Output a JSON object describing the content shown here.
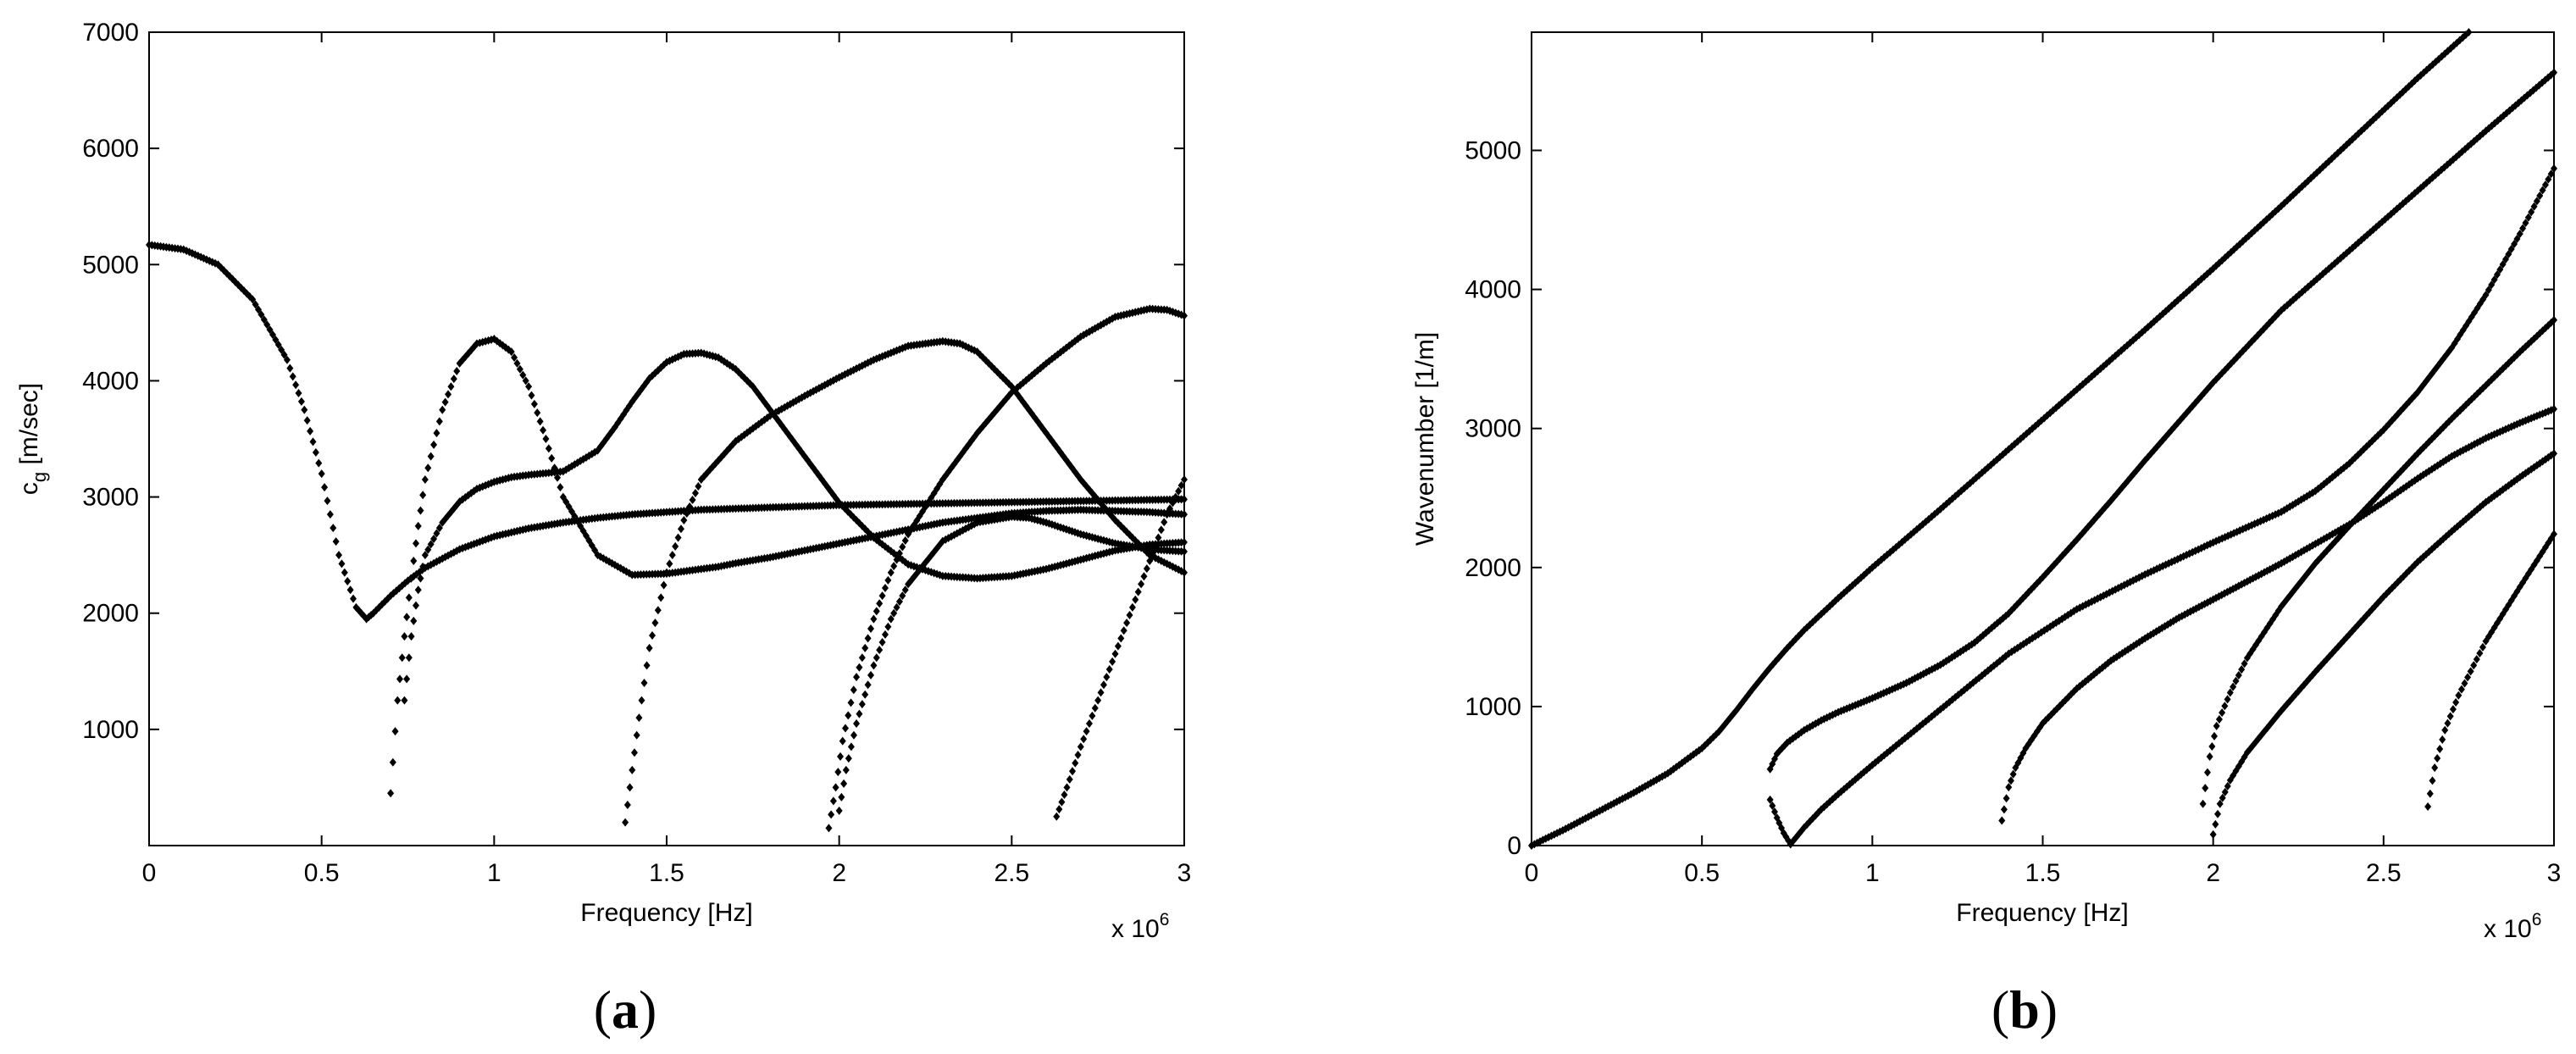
{
  "chart_data": [
    {
      "type": "scatter",
      "panel_label": "a",
      "xlabel": "Frequency [Hz]",
      "ylabel_main": "c",
      "ylabel_sub": "g",
      "ylabel_rest": " [m/sec]",
      "x_multiplier_base": "x 10",
      "x_multiplier_exp": "6",
      "xlim": [
        0,
        3
      ],
      "ylim": [
        0,
        7000
      ],
      "xticks": [
        0,
        0.5,
        1,
        1.5,
        2,
        2.5,
        3
      ],
      "xtick_labels": [
        "0",
        "0.5",
        "1",
        "1.5",
        "2",
        "2.5",
        "3"
      ],
      "yticks": [
        1000,
        2000,
        3000,
        4000,
        5000,
        6000,
        7000
      ],
      "ytick_labels": [
        "1000",
        "2000",
        "3000",
        "4000",
        "5000",
        "6000",
        "7000"
      ],
      "grid": false,
      "series": [
        {
          "x": [
            0,
            0.1,
            0.2,
            0.3,
            0.4,
            0.45,
            0.5,
            0.55,
            0.6,
            0.63,
            0.65,
            0.7,
            0.75,
            0.8,
            0.9,
            1.0,
            1.1,
            1.2,
            1.3,
            1.4,
            1.5,
            1.6,
            1.7,
            1.8,
            1.9,
            2.0,
            2.1,
            2.2,
            2.3,
            2.4,
            2.5,
            2.6,
            2.7,
            2.8,
            2.9,
            3.0
          ],
          "y": [
            5170,
            5130,
            5000,
            4700,
            4180,
            3750,
            3200,
            2500,
            2050,
            1950,
            2000,
            2150,
            2280,
            2390,
            2550,
            2660,
            2730,
            2780,
            2820,
            2850,
            2870,
            2890,
            2900,
            2910,
            2920,
            2930,
            2935,
            2940,
            2945,
            2950,
            2955,
            2960,
            2965,
            2970,
            2975,
            2980
          ]
        },
        {
          "x": [
            0.7,
            0.72,
            0.74,
            0.76,
            0.78,
            0.8,
            0.85,
            0.9,
            0.95,
            1.0,
            1.05,
            1.1,
            1.15,
            1.2,
            1.3,
            1.4,
            1.5,
            1.6,
            1.65,
            1.7,
            1.8,
            1.9,
            2.0,
            2.1,
            2.2,
            2.3,
            2.4,
            2.5,
            2.6,
            2.7,
            2.8,
            2.9,
            3.0
          ],
          "y": [
            450,
            1250,
            1800,
            2300,
            2750,
            3150,
            3750,
            4150,
            4320,
            4360,
            4250,
            3950,
            3500,
            3000,
            2500,
            2330,
            2340,
            2380,
            2400,
            2430,
            2480,
            2540,
            2600,
            2660,
            2720,
            2780,
            2820,
            2860,
            2880,
            2890,
            2880,
            2870,
            2850
          ]
        },
        {
          "x": [
            0.74,
            0.76,
            0.78,
            0.8,
            0.85,
            0.9,
            0.95,
            1.0,
            1.05,
            1.1,
            1.2,
            1.3,
            1.35,
            1.4,
            1.45,
            1.5,
            1.55,
            1.6,
            1.65,
            1.7,
            1.75,
            1.8,
            1.9,
            2.0,
            2.1,
            2.2,
            2.3,
            2.4,
            2.5,
            2.6,
            2.7,
            2.8,
            2.9,
            3.0
          ],
          "y": [
            1250,
            1800,
            2200,
            2500,
            2780,
            2960,
            3070,
            3130,
            3170,
            3190,
            3220,
            3400,
            3600,
            3820,
            4020,
            4160,
            4230,
            4240,
            4200,
            4100,
            3950,
            3750,
            3350,
            2950,
            2650,
            2420,
            2320,
            2300,
            2320,
            2380,
            2460,
            2540,
            2590,
            2610
          ]
        },
        {
          "x": [
            1.38,
            1.4,
            1.42,
            1.45,
            1.5,
            1.55,
            1.6,
            1.7,
            1.8,
            1.9,
            2.0,
            2.1,
            2.2,
            2.3,
            2.35,
            2.4,
            2.5,
            2.6,
            2.7,
            2.8,
            2.9,
            3.0
          ],
          "y": [
            200,
            650,
            1100,
            1700,
            2350,
            2800,
            3150,
            3480,
            3700,
            3870,
            4030,
            4180,
            4300,
            4340,
            4320,
            4250,
            3950,
            3550,
            3150,
            2800,
            2500,
            2350
          ]
        },
        {
          "x": [
            1.97,
            1.99,
            2.01,
            2.05,
            2.1,
            2.15,
            2.2,
            2.3,
            2.4,
            2.5,
            2.6,
            2.7,
            2.8,
            2.9,
            2.95,
            3.0
          ],
          "y": [
            150,
            500,
            900,
            1450,
            1950,
            2350,
            2680,
            3150,
            3550,
            3900,
            4150,
            4380,
            4550,
            4620,
            4610,
            4560
          ]
        },
        {
          "x": [
            2.0,
            2.02,
            2.05,
            2.1,
            2.15,
            2.2,
            2.3,
            2.4,
            2.5,
            2.55,
            2.6,
            2.7,
            2.8,
            2.9,
            3.0
          ],
          "y": [
            300,
            650,
            1050,
            1550,
            1950,
            2250,
            2620,
            2780,
            2830,
            2820,
            2780,
            2680,
            2600,
            2550,
            2530
          ]
        },
        {
          "x": [
            2.63,
            2.66,
            2.7,
            2.75,
            2.8,
            2.85,
            2.9,
            2.95,
            3.0
          ],
          "y": [
            250,
            500,
            850,
            1250,
            1650,
            2050,
            2450,
            2850,
            3150
          ]
        }
      ]
    },
    {
      "type": "scatter",
      "panel_label": "b",
      "xlabel": "Frequency [Hz]",
      "ylabel": "Wavenumber [1/m]",
      "x_multiplier_base": "x 10",
      "x_multiplier_exp": "6",
      "xlim": [
        0,
        3
      ],
      "ylim": [
        0,
        5850
      ],
      "xticks": [
        0,
        0.5,
        1,
        1.5,
        2,
        2.5,
        3
      ],
      "xtick_labels": [
        "0",
        "0.5",
        "1",
        "1.5",
        "2",
        "2.5",
        "3"
      ],
      "yticks": [
        0,
        1000,
        2000,
        3000,
        4000,
        5000
      ],
      "ytick_labels": [
        "0",
        "1000",
        "2000",
        "3000",
        "4000",
        "5000"
      ],
      "grid": false,
      "series": [
        {
          "x": [
            0,
            0.1,
            0.2,
            0.3,
            0.4,
            0.5,
            0.55,
            0.6,
            0.65,
            0.7,
            0.75,
            0.8,
            0.9,
            1.0,
            1.2,
            1.4,
            1.6,
            1.8,
            2.0,
            2.2,
            2.4,
            2.6,
            2.75
          ],
          "y": [
            0,
            120,
            250,
            380,
            520,
            700,
            820,
            970,
            1130,
            1280,
            1420,
            1550,
            1780,
            2000,
            2420,
            2850,
            3280,
            3710,
            4150,
            4600,
            5060,
            5520,
            5850
          ]
        },
        {
          "x": [
            0.7,
            0.72,
            0.75,
            0.8,
            0.85,
            0.9,
            1.0,
            1.1,
            1.2,
            1.3,
            1.4,
            1.5,
            1.6,
            1.7,
            1.8,
            2.0,
            2.2,
            2.4,
            2.6,
            2.8,
            3.0
          ],
          "y": [
            550,
            660,
            740,
            830,
            900,
            960,
            1060,
            1170,
            1300,
            1460,
            1670,
            1930,
            2200,
            2480,
            2770,
            3330,
            3850,
            4280,
            4710,
            5140,
            5560
          ]
        },
        {
          "x": [
            0.7,
            0.72,
            0.74,
            0.76
          ],
          "y": [
            330,
            200,
            90,
            10
          ]
        },
        {
          "x": [
            0.76,
            0.8,
            0.85,
            0.9,
            1.0,
            1.2,
            1.4,
            1.6,
            1.8,
            2.0,
            2.2,
            2.3,
            2.4,
            2.5,
            2.6,
            2.7,
            2.8,
            2.9,
            3.0
          ],
          "y": [
            10,
            130,
            260,
            370,
            580,
            980,
            1380,
            1700,
            1950,
            2180,
            2400,
            2550,
            2750,
            2990,
            3260,
            3580,
            3960,
            4400,
            4870
          ]
        },
        {
          "x": [
            1.38,
            1.4,
            1.42,
            1.45,
            1.5,
            1.6,
            1.7,
            1.8,
            1.9,
            2.0,
            2.1,
            2.2,
            2.3,
            2.4,
            2.5,
            2.6,
            2.7,
            2.8,
            2.9,
            3.0
          ],
          "y": [
            180,
            420,
            560,
            700,
            880,
            1130,
            1330,
            1490,
            1640,
            1770,
            1900,
            2030,
            2170,
            2310,
            2470,
            2640,
            2800,
            2930,
            3040,
            3140
          ]
        },
        {
          "x": [
            1.97,
            1.99,
            2.01,
            2.05,
            2.1,
            2.2,
            2.3,
            2.4,
            2.5,
            2.6,
            2.7,
            2.8,
            2.9,
            3.0
          ],
          "y": [
            300,
            640,
            860,
            1100,
            1350,
            1720,
            2030,
            2300,
            2560,
            2820,
            3070,
            3310,
            3550,
            3780
          ]
        },
        {
          "x": [
            2.0,
            2.02,
            2.05,
            2.1,
            2.2,
            2.3,
            2.4,
            2.5,
            2.6,
            2.7,
            2.8,
            2.9,
            3.0
          ],
          "y": [
            80,
            300,
            470,
            670,
            970,
            1250,
            1520,
            1790,
            2040,
            2260,
            2470,
            2650,
            2820
          ]
        },
        {
          "x": [
            2.63,
            2.65,
            2.68,
            2.72,
            2.8,
            2.9,
            3.0
          ],
          "y": [
            280,
            560,
            830,
            1080,
            1470,
            1860,
            2240
          ]
        }
      ]
    }
  ]
}
